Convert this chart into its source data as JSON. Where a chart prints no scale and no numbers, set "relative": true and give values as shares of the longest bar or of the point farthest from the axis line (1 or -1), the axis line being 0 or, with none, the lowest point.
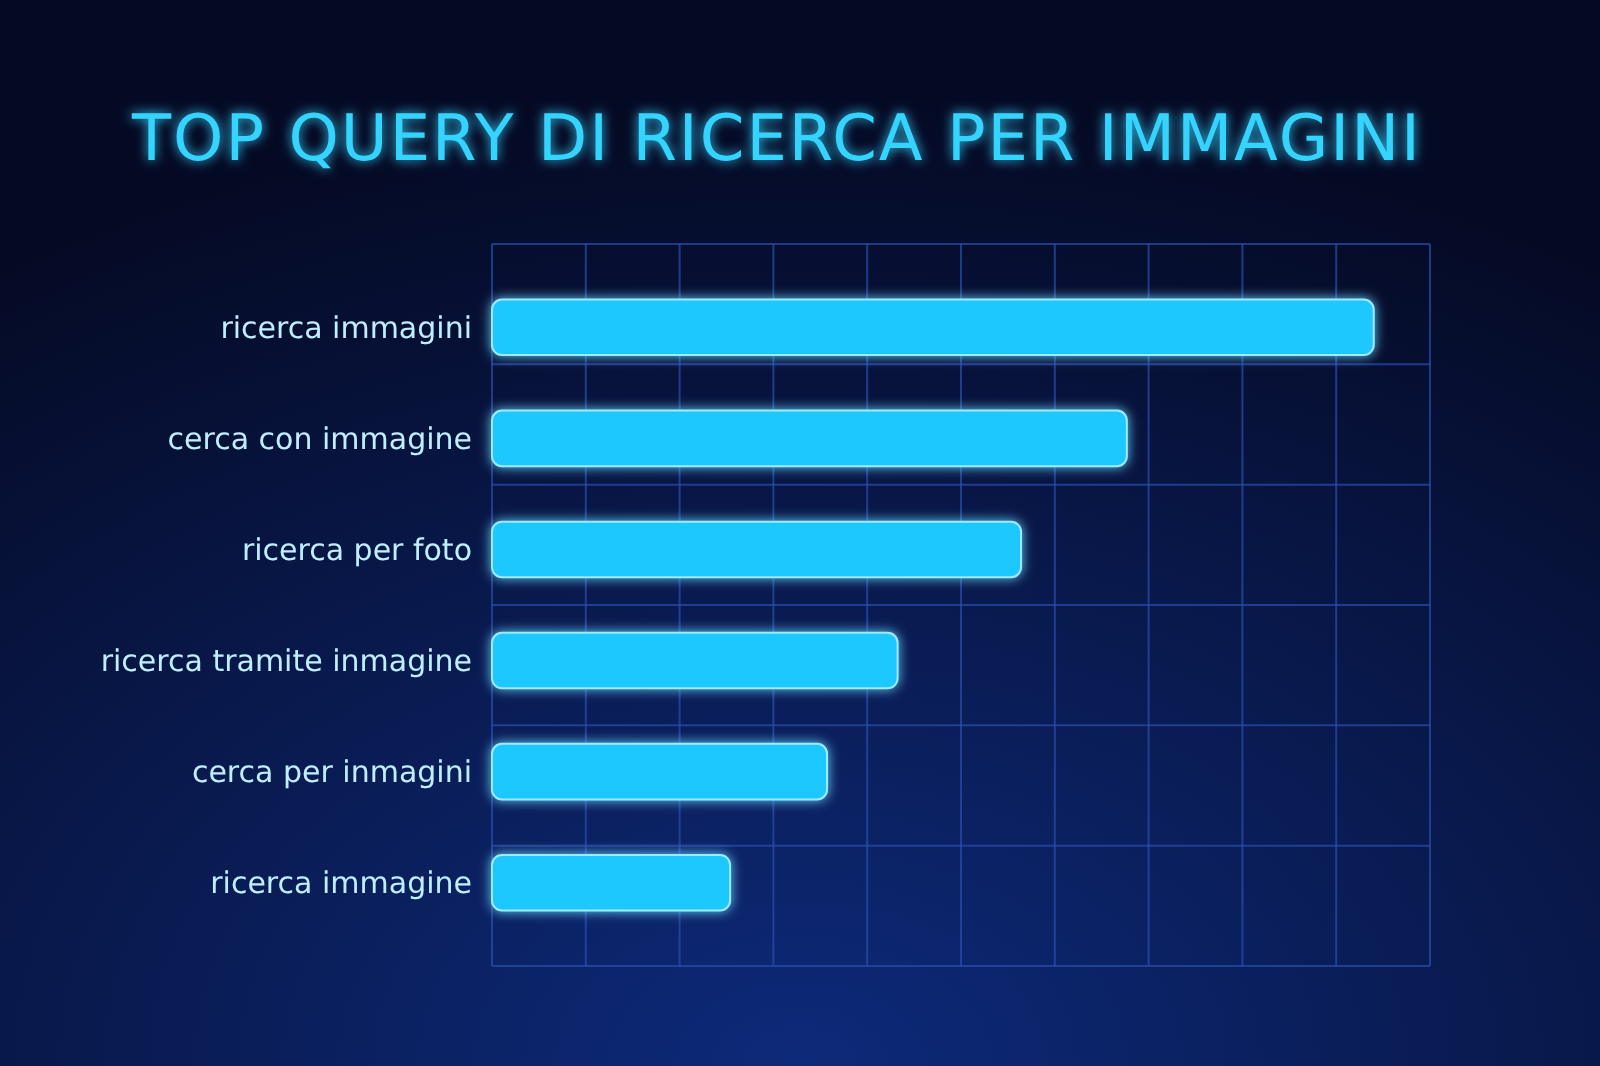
{
  "chart_data": {
    "type": "bar",
    "orientation": "horizontal",
    "relative": true,
    "title": "TOP QUERY DI RICERCA PER IMMAGINI",
    "categories": [
      "ricerca immagini",
      "cerca con immagine",
      "ricerca per foto",
      "ricerca tramite inmagine",
      "cerca per inmagini",
      "ricerca immagine"
    ],
    "values": [
      1,
      0.72,
      0.6,
      0.46,
      0.38,
      0.27
    ],
    "color": "#1ec8ff",
    "grid": true
  }
}
